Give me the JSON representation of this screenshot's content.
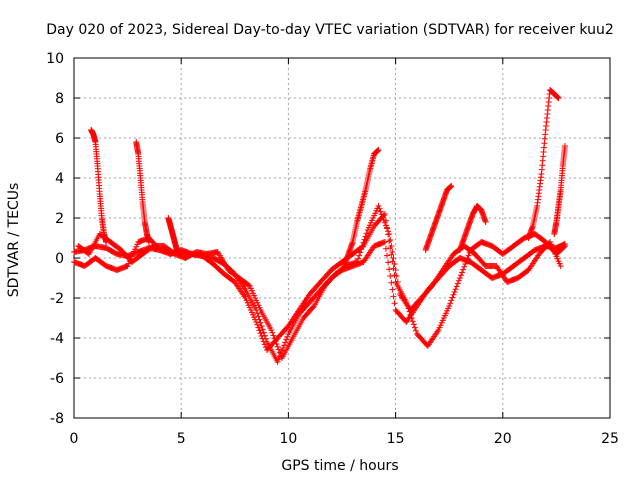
{
  "chart_data": {
    "type": "scatter",
    "title": "Day 020 of 2023, Sidereal Day-to-day VTEC variation (SDTVAR) for receiver kuu2",
    "xlabel": "GPS time / hours",
    "ylabel": "SDTVAR / TECUs",
    "xlim": [
      0,
      25
    ],
    "ylim": [
      -8,
      10
    ],
    "xticks": [
      0,
      5,
      10,
      15,
      20,
      25
    ],
    "yticks": [
      -8,
      -6,
      -4,
      -2,
      0,
      2,
      4,
      6,
      8,
      10
    ],
    "grid": true,
    "legend": "none",
    "marker": "+",
    "series": [
      {
        "name": "SDTVAR",
        "color": "#ff0000",
        "x": [
          0.0,
          0.5,
          1.0,
          1.5,
          2.0,
          2.5,
          3.0,
          3.5,
          4.0,
          4.5,
          5.0,
          5.5,
          6.0,
          6.5,
          7.0,
          7.5,
          8.0,
          8.5,
          9.0,
          9.5,
          10.0,
          10.5,
          11.0,
          11.5,
          12.0,
          12.5,
          13.0,
          13.5,
          14.0,
          14.5,
          15.0,
          15.5,
          16.0,
          16.5,
          17.0,
          17.5,
          18.0,
          18.5,
          19.0,
          19.5,
          20.0,
          20.5,
          21.0,
          21.5,
          22.0,
          22.5,
          22.9
        ],
        "y": [
          0.3,
          0.4,
          0.6,
          0.5,
          0.2,
          0.1,
          0.3,
          0.5,
          0.4,
          0.3,
          0.2,
          0.2,
          0.1,
          0.0,
          -0.3,
          -0.8,
          -1.6,
          -2.6,
          -4.2,
          -5.2,
          -3.8,
          -2.8,
          -2.2,
          -1.6,
          -1.0,
          -0.6,
          -0.4,
          -0.2,
          0.6,
          0.8,
          -2.6,
          -3.2,
          -2.4,
          -1.6,
          -1.0,
          -0.4,
          0.0,
          -0.2,
          -0.6,
          -1.0,
          -0.8,
          -0.4,
          0.0,
          0.4,
          0.6,
          0.5,
          0.7
        ]
      },
      {
        "name": "SDTVAR",
        "color": "#ff0000",
        "x": [
          0.0,
          0.5,
          1.0,
          1.5,
          2.0,
          2.5,
          3.0,
          3.5,
          4.0,
          4.5,
          5.0,
          5.5,
          6.0,
          6.5,
          7.0,
          7.5,
          8.0,
          8.5,
          9.0,
          9.5,
          10.0,
          10.5,
          11.0,
          11.5,
          12.0,
          12.5,
          13.0,
          13.5,
          14.0,
          14.5,
          15.0,
          15.5,
          16.0,
          16.5,
          17.0,
          17.5,
          18.0,
          18.5,
          19.0,
          19.5,
          20.0,
          20.5,
          21.0,
          21.5,
          22.0,
          22.5,
          22.9
        ],
        "y": [
          -0.2,
          -0.4,
          0.0,
          -0.4,
          -0.6,
          -0.4,
          0.8,
          1.0,
          0.4,
          0.2,
          0.4,
          0.2,
          0.1,
          -0.3,
          -0.8,
          -1.2,
          -2.0,
          -3.2,
          -4.6,
          -4.0,
          -3.4,
          -2.6,
          -1.8,
          -1.2,
          -0.6,
          -0.2,
          0.2,
          0.6,
          1.6,
          2.2,
          -1.2,
          -2.2,
          -3.8,
          -4.4,
          -3.6,
          -2.4,
          -1.0,
          0.4,
          0.8,
          0.6,
          0.2,
          0.6,
          1.0,
          1.2,
          0.8,
          0.2,
          0.6
        ]
      },
      {
        "name": "SDTVAR",
        "color": "#ff0000",
        "x": [
          0.2,
          0.7,
          1.2,
          1.7,
          2.2,
          2.7,
          3.2,
          3.7,
          4.2,
          4.7,
          5.2,
          5.7,
          6.2,
          6.7,
          7.2,
          7.7,
          8.2,
          8.7,
          9.2,
          9.7,
          10.2,
          10.7,
          11.2,
          11.7,
          12.2,
          12.7,
          13.2,
          13.7,
          14.2,
          14.7,
          15.2,
          15.7,
          16.2,
          16.7,
          17.2,
          17.7,
          18.2,
          18.7,
          19.2,
          19.7,
          20.2,
          20.7,
          21.2,
          21.7,
          22.2,
          22.7
        ],
        "y": [
          0.6,
          0.2,
          1.2,
          0.8,
          0.4,
          -0.2,
          0.2,
          0.6,
          0.6,
          0.2,
          0.0,
          0.3,
          0.2,
          0.3,
          -0.6,
          -1.0,
          -1.4,
          -2.6,
          -3.6,
          -5.0,
          -4.0,
          -3.0,
          -2.4,
          -1.4,
          -0.8,
          -0.4,
          -0.2,
          1.4,
          2.6,
          1.2,
          -1.8,
          -2.6,
          -2.0,
          -1.4,
          -0.6,
          0.2,
          0.6,
          0.2,
          -0.4,
          -0.4,
          -1.2,
          -1.0,
          -0.6,
          0.2,
          0.8,
          -0.4
        ]
      },
      {
        "name": "SDTVAR",
        "color": "#ff0000",
        "x": [
          0.8,
          0.9,
          1.0,
          1.1,
          1.2,
          1.3,
          1.4,
          1.5
        ],
        "y": [
          6.4,
          6.2,
          5.8,
          4.6,
          3.2,
          2.0,
          1.2,
          0.8
        ]
      },
      {
        "name": "SDTVAR",
        "color": "#ff0000",
        "x": [
          2.9,
          3.0,
          3.1,
          3.2,
          3.3,
          3.4,
          3.5
        ],
        "y": [
          5.8,
          5.2,
          4.0,
          2.8,
          1.8,
          1.2,
          0.8
        ]
      },
      {
        "name": "SDTVAR",
        "color": "#ff0000",
        "x": [
          4.4,
          4.5,
          4.6,
          4.7,
          4.8
        ],
        "y": [
          2.0,
          1.6,
          1.2,
          0.8,
          0.4
        ]
      },
      {
        "name": "SDTVAR",
        "color": "#ff0000",
        "x": [
          12.6,
          12.8,
          13.0,
          13.2,
          13.4,
          13.6,
          13.8,
          14.0,
          14.2
        ],
        "y": [
          -0.4,
          0.2,
          0.8,
          1.8,
          2.6,
          3.4,
          4.4,
          5.2,
          5.4
        ]
      },
      {
        "name": "SDTVAR",
        "color": "#ff0000",
        "x": [
          16.4,
          16.6,
          16.8,
          17.0,
          17.2,
          17.4,
          17.6
        ],
        "y": [
          0.4,
          1.0,
          1.6,
          2.2,
          2.8,
          3.4,
          3.6
        ]
      },
      {
        "name": "SDTVAR",
        "color": "#ff0000",
        "x": [
          18.0,
          18.2,
          18.4,
          18.6,
          18.8,
          19.0,
          19.2
        ],
        "y": [
          0.4,
          1.0,
          1.6,
          2.2,
          2.6,
          2.4,
          1.8
        ]
      },
      {
        "name": "SDTVAR",
        "color": "#ff0000",
        "x": [
          21.2,
          21.4,
          21.6,
          21.8,
          22.0,
          22.2,
          22.4,
          22.6
        ],
        "y": [
          1.0,
          1.6,
          2.6,
          4.2,
          6.4,
          8.4,
          8.2,
          8.0
        ]
      },
      {
        "name": "SDTVAR",
        "color": "#ff0000",
        "x": [
          22.4,
          22.5,
          22.6,
          22.7,
          22.8,
          22.9
        ],
        "y": [
          1.2,
          1.8,
          2.6,
          3.4,
          4.6,
          5.6
        ]
      }
    ]
  }
}
